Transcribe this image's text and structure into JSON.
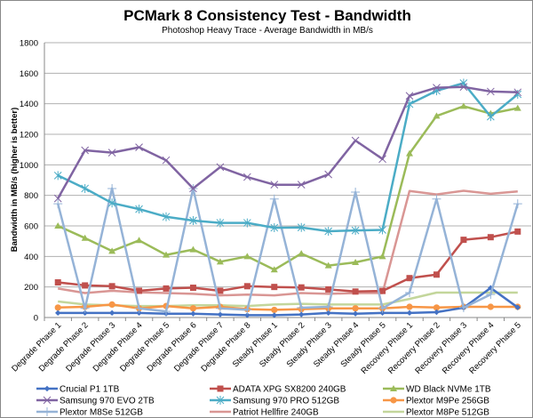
{
  "chart_data": {
    "type": "line",
    "title": "PCMark 8 Consistency Test - Bandwidth",
    "subtitle": "Photoshop Heavy Trace - Average Bandwidth in MB/s",
    "xlabel": "",
    "ylabel": "Bandwidth in MB/s (higher is better)",
    "ylim": [
      0,
      1800
    ],
    "yticks": [
      0,
      200,
      400,
      600,
      800,
      1000,
      1200,
      1400,
      1600,
      1800
    ],
    "grid": "horizontal",
    "legend_position": "bottom",
    "categories": [
      "Degrade Phase 1",
      "Degrade Phase 2",
      "Degrade Phase 3",
      "Degrade Phase 4",
      "Degrade Phase 5",
      "Degrade Phase 6",
      "Degrade Phase 7",
      "Degrade Phase 8",
      "Steady Phase 1",
      "Steady Phase 2",
      "Steady Phase 3",
      "Steady Phase 4",
      "Steady Phase 5",
      "Recovery Phase 1",
      "Recovery Phase 2",
      "Recovery Phase 3",
      "Recovery Phase 4",
      "Recovery Phase 5"
    ],
    "series": [
      {
        "name": "Crucial P1 1TB",
        "color": "#4472C4",
        "marker": "diamond",
        "values": [
          30,
          30,
          30,
          30,
          25,
          25,
          20,
          15,
          15,
          20,
          30,
          25,
          30,
          30,
          35,
          64,
          194,
          66
        ]
      },
      {
        "name": "ADATA XPG SX8200 240GB",
        "color": "#C0504D",
        "marker": "square",
        "values": [
          230,
          210,
          205,
          175,
          190,
          195,
          175,
          205,
          200,
          197,
          184,
          170,
          174,
          258,
          281,
          509,
          526,
          563
        ]
      },
      {
        "name": "WD Black NVMe 1TB",
        "color": "#9BBB59",
        "marker": "triangle",
        "values": [
          600,
          520,
          435,
          505,
          410,
          445,
          365,
          400,
          313,
          419,
          340,
          361,
          400,
          1074,
          1320,
          1384,
          1336,
          1371
        ]
      },
      {
        "name": "Samsung 970 EVO 2TB",
        "color": "#8064A2",
        "marker": "x",
        "values": [
          780,
          1095,
          1080,
          1115,
          1030,
          845,
          985,
          920,
          870,
          870,
          937,
          1159,
          1038,
          1452,
          1505,
          1510,
          1480,
          1475
        ]
      },
      {
        "name": "Samsung 970 PRO 512GB",
        "color": "#4BACC6",
        "marker": "star",
        "values": [
          930,
          845,
          750,
          710,
          660,
          635,
          620,
          620,
          588,
          590,
          565,
          570,
          574,
          1398,
          1485,
          1535,
          1316,
          1462
        ]
      },
      {
        "name": "Plextor M9Pe 256GB",
        "color": "#F79646",
        "marker": "circle",
        "values": [
          65,
          70,
          85,
          60,
          75,
          60,
          70,
          55,
          50,
          55,
          60,
          60,
          60,
          70,
          65,
          70,
          70,
          70
        ]
      },
      {
        "name": "Plextor M8Se 512GB",
        "color": "#95B3D7",
        "marker": "plus",
        "values": [
          745,
          60,
          845,
          60,
          40,
          845,
          60,
          50,
          776,
          64,
          70,
          821,
          60,
          163,
          776,
          64,
          151,
          745
        ]
      },
      {
        "name": "Patriot Hellfire 240GB",
        "color": "#D99694",
        "marker": "none",
        "values": [
          190,
          160,
          175,
          165,
          160,
          155,
          145,
          150,
          145,
          160,
          155,
          160,
          160,
          829,
          806,
          830,
          810,
          826
        ]
      },
      {
        "name": "Plextor M8Pe 512GB",
        "color": "#C3D69B",
        "marker": "none",
        "values": [
          105,
          85,
          80,
          75,
          75,
          80,
          80,
          75,
          85,
          90,
          85,
          85,
          85,
          122,
          163,
          163,
          163,
          163
        ]
      }
    ]
  }
}
